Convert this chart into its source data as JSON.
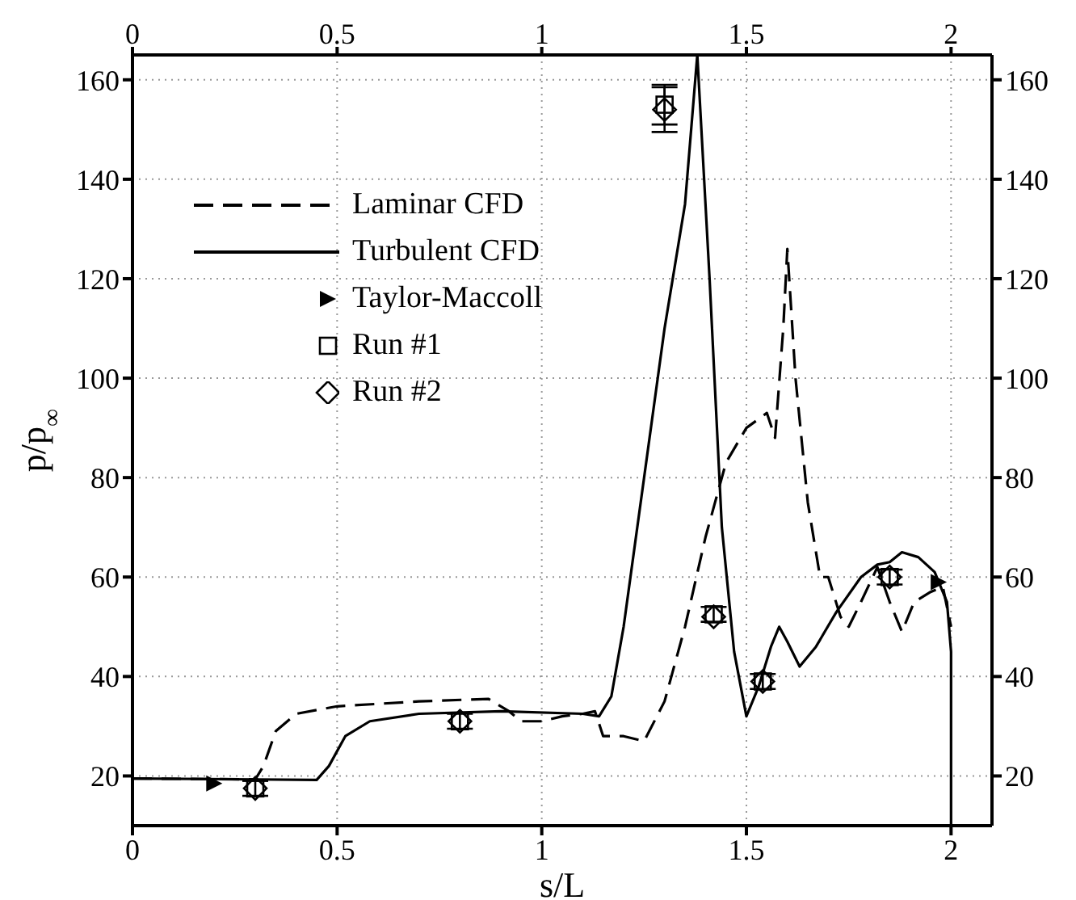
{
  "chart_data": {
    "type": "line",
    "xlabel": "s/L",
    "ylabel": "p/p$_{∞}$",
    "xlim": [
      0,
      2.1
    ],
    "xticks": [
      0,
      0.5,
      1,
      1.5,
      2
    ],
    "x2lim": [
      0,
      2.1
    ],
    "x2ticks": [
      0,
      0.5,
      1,
      1.5,
      2
    ],
    "ylim": [
      10,
      165
    ],
    "yticks": [
      20,
      40,
      60,
      80,
      100,
      120,
      140,
      160
    ],
    "y2lim": [
      10,
      165
    ],
    "y2ticks": [
      20,
      40,
      60,
      80,
      100,
      120,
      140,
      160
    ],
    "grid": true,
    "legend": "top left",
    "series": [
      {
        "name": "Laminar CFD",
        "type": "line",
        "color": "#000000",
        "line_style": "dashed",
        "marker": "none",
        "x": [
          0,
          0.3,
          0.32,
          0.35,
          0.4,
          0.5,
          0.7,
          0.87,
          0.92,
          0.95,
          1.0,
          1.05,
          1.1,
          1.13,
          1.15,
          1.2,
          1.25,
          1.3,
          1.35,
          1.4,
          1.45,
          1.5,
          1.55,
          1.57,
          1.59,
          1.6,
          1.62,
          1.65,
          1.68,
          1.7,
          1.73,
          1.75,
          1.78,
          1.82,
          1.85,
          1.88,
          1.91,
          1.95,
          1.98,
          2.0
        ],
        "values": [
          19.5,
          19.3,
          22,
          29,
          32.5,
          34,
          35,
          35.5,
          33,
          31,
          31,
          32,
          32.5,
          33,
          28,
          28,
          27,
          35,
          50,
          68,
          83,
          90,
          93,
          88,
          110,
          126,
          100,
          75,
          60,
          60,
          52,
          50,
          55,
          62,
          55,
          49,
          55,
          57,
          58,
          50
        ]
      },
      {
        "name": "Turbulent CFD",
        "type": "line",
        "color": "#000000",
        "line_style": "solid",
        "marker": "none",
        "x": [
          0,
          0.3,
          0.45,
          0.48,
          0.52,
          0.58,
          0.7,
          0.9,
          1.1,
          1.14,
          1.17,
          1.2,
          1.25,
          1.3,
          1.35,
          1.38,
          1.41,
          1.44,
          1.47,
          1.5,
          1.53,
          1.56,
          1.58,
          1.6,
          1.63,
          1.67,
          1.72,
          1.78,
          1.82,
          1.85,
          1.88,
          1.92,
          1.96,
          1.99,
          2.0,
          2.0
        ],
        "values": [
          19.5,
          19.3,
          19.2,
          22,
          28,
          31,
          32.5,
          33,
          32.5,
          32,
          36,
          50,
          80,
          110,
          135,
          165,
          120,
          70,
          45,
          32,
          38,
          46,
          50,
          47,
          42,
          46,
          53,
          60,
          62.5,
          63,
          65,
          64,
          61,
          55,
          45,
          10
        ]
      },
      {
        "name": "Taylor-Maccoll",
        "type": "scatter",
        "color": "#000000",
        "marker": "triangle",
        "x": [
          0.2,
          1.97
        ],
        "values": [
          18.5,
          59
        ]
      },
      {
        "name": "Run #1",
        "type": "scatter",
        "color": "#000000",
        "marker": "square",
        "x": [
          0.3,
          0.8,
          1.3,
          1.42,
          1.54,
          1.85
        ],
        "values": [
          17.5,
          31,
          155,
          52.5,
          39,
          60
        ],
        "errors": [
          1.5,
          1.5,
          4,
          1.5,
          1.5,
          1.5
        ]
      },
      {
        "name": "Run #2",
        "type": "scatter",
        "color": "#000000",
        "marker": "diamond",
        "x": [
          0.3,
          0.8,
          1.3,
          1.42,
          1.54,
          1.85
        ],
        "values": [
          17.5,
          31,
          154,
          52,
          39,
          60
        ],
        "errors": [
          null,
          null,
          4.5,
          null,
          null,
          null
        ]
      }
    ]
  }
}
